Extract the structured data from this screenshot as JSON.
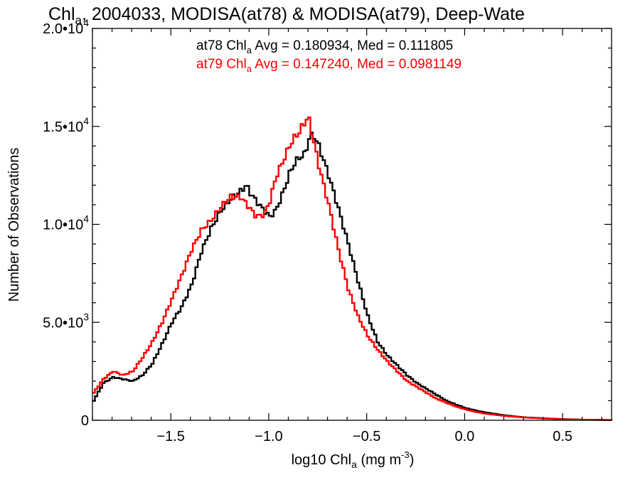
{
  "chart_data": {
    "type": "line",
    "title": {
      "prefix": "Chl",
      "sub": "a",
      "rest": ", 2004033, MODISA(at78) & MODISA(at79), Deep-Wate"
    },
    "xlabel": {
      "prefix": "log10 Chl",
      "sub": "a",
      "mid": " (mg m",
      "sup": "-3",
      "suffix": ")"
    },
    "ylabel": "Number of Observations",
    "xlim": [
      -1.9,
      0.75
    ],
    "ylim": [
      0,
      20000
    ],
    "x_ticks": [
      {
        "value": -1.5,
        "label": "−1.5"
      },
      {
        "value": -1.0,
        "label": "−1.0"
      },
      {
        "value": -0.5,
        "label": "−0.5"
      },
      {
        "value": 0.0,
        "label": "0.0"
      },
      {
        "value": 0.5,
        "label": "0.5"
      }
    ],
    "y_ticks": [
      {
        "value": 0,
        "mant": "0",
        "exp": ""
      },
      {
        "value": 5000,
        "mant": "5.0•10",
        "exp": "3"
      },
      {
        "value": 10000,
        "mant": "1.0•10",
        "exp": "4"
      },
      {
        "value": 15000,
        "mant": "1.5•10",
        "exp": "4"
      },
      {
        "value": 20000,
        "mant": "2.0•10",
        "exp": "4"
      }
    ],
    "annotations": [
      {
        "pre": "at78 Chl",
        "sub": "a",
        "post": " Avg = 0.180934, Med = 0.111805",
        "color": "#000000"
      },
      {
        "pre": "at79 Chl",
        "sub": "a",
        "post": " Avg = 0.147240, Med = 0.0981149",
        "color": "#ff0000"
      }
    ],
    "grid": false,
    "series": [
      {
        "color": "#000000",
        "x": [
          -1.9,
          -1.85,
          -1.8,
          -1.75,
          -1.7,
          -1.65,
          -1.6,
          -1.55,
          -1.5,
          -1.45,
          -1.4,
          -1.35,
          -1.3,
          -1.25,
          -1.2,
          -1.15,
          -1.12,
          -1.1,
          -1.07,
          -1.03,
          -1.0,
          -0.97,
          -0.93,
          -0.9,
          -0.87,
          -0.85,
          -0.82,
          -0.8,
          -0.78,
          -0.75,
          -0.7,
          -0.65,
          -0.6,
          -0.55,
          -0.5,
          -0.45,
          -0.4,
          -0.35,
          -0.3,
          -0.25,
          -0.2,
          -0.15,
          -0.1,
          -0.05,
          0.0,
          0.05,
          0.1,
          0.2,
          0.3,
          0.4,
          0.5,
          0.6,
          0.7,
          0.75
        ],
        "y": [
          1000,
          1900,
          2200,
          2100,
          2000,
          2300,
          2900,
          3900,
          5000,
          5800,
          6900,
          8600,
          9800,
          10700,
          11300,
          11700,
          12000,
          11600,
          11200,
          10700,
          10400,
          10700,
          11700,
          12600,
          13200,
          13400,
          13600,
          14400,
          14600,
          14000,
          12500,
          10800,
          9000,
          7100,
          5300,
          4000,
          3300,
          2800,
          2300,
          1900,
          1600,
          1300,
          1000,
          800,
          620,
          500,
          400,
          250,
          150,
          100,
          60,
          30,
          20,
          10
        ]
      },
      {
        "color": "#ff0000",
        "x": [
          -1.9,
          -1.85,
          -1.8,
          -1.75,
          -1.7,
          -1.65,
          -1.6,
          -1.55,
          -1.5,
          -1.45,
          -1.4,
          -1.35,
          -1.3,
          -1.25,
          -1.2,
          -1.15,
          -1.1,
          -1.07,
          -1.03,
          -1.0,
          -0.97,
          -0.93,
          -0.9,
          -0.87,
          -0.85,
          -0.83,
          -0.81,
          -0.8,
          -0.78,
          -0.75,
          -0.7,
          -0.65,
          -0.6,
          -0.55,
          -0.5,
          -0.45,
          -0.4,
          -0.35,
          -0.3,
          -0.25,
          -0.2,
          -0.15,
          -0.1,
          -0.05,
          0.0,
          0.05,
          0.1,
          0.2,
          0.3,
          0.4,
          0.5,
          0.6,
          0.7,
          0.75
        ],
        "y": [
          1400,
          2100,
          2500,
          2300,
          2500,
          3200,
          4000,
          5000,
          6200,
          7400,
          8700,
          9700,
          10200,
          10900,
          11400,
          11400,
          10800,
          10400,
          10500,
          11200,
          12400,
          13300,
          14000,
          14500,
          14700,
          15100,
          15400,
          15300,
          14400,
          13000,
          11000,
          8700,
          6700,
          5300,
          4300,
          3600,
          3000,
          2500,
          2000,
          1700,
          1400,
          1100,
          900,
          700,
          550,
          430,
          340,
          220,
          140,
          90,
          50,
          25,
          15,
          10
        ]
      }
    ]
  }
}
